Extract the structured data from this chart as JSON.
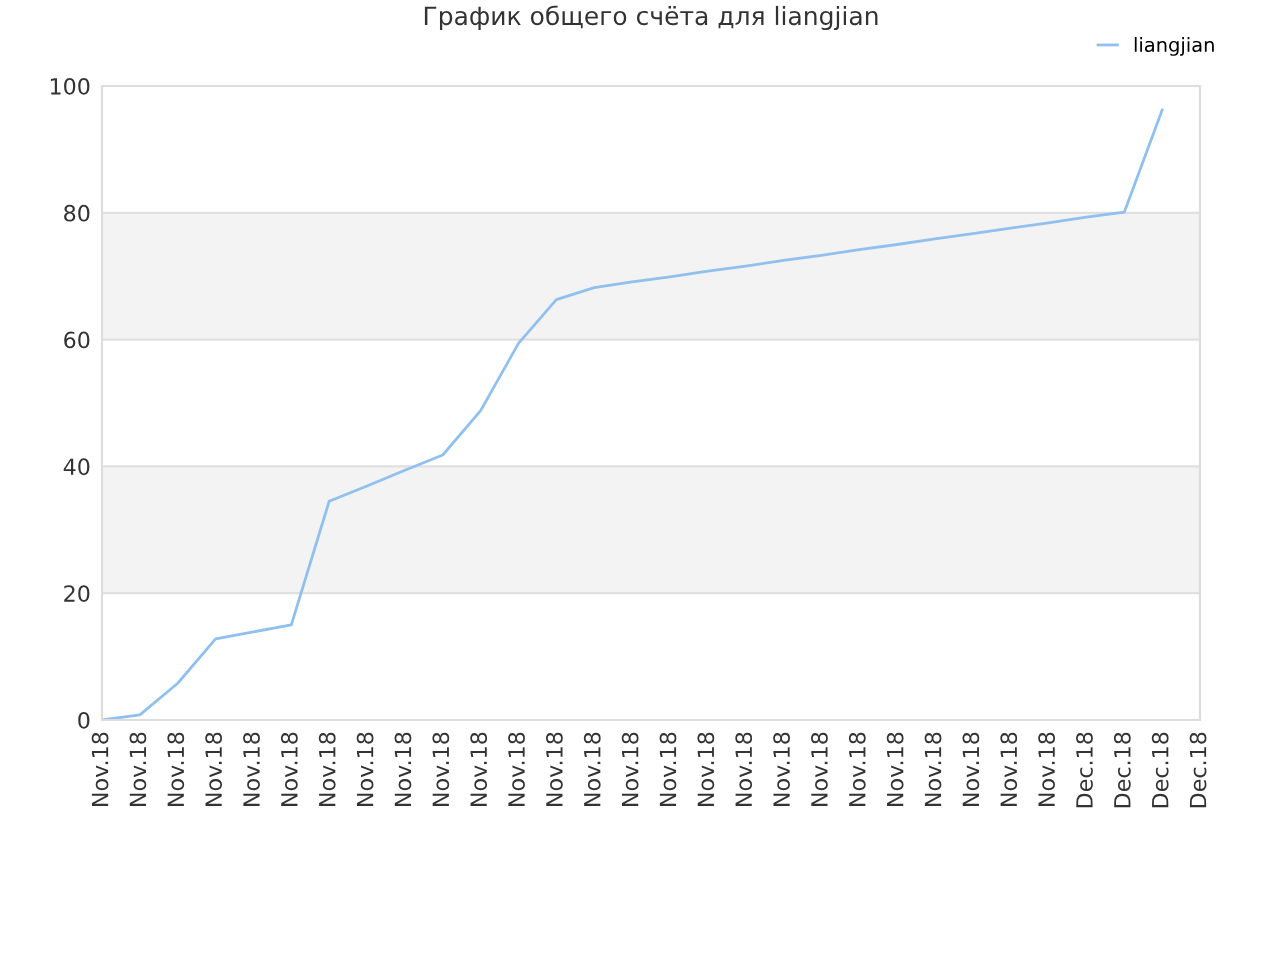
{
  "chart_data": {
    "type": "line",
    "title": "График общего счёта для liangjian",
    "categories": [
      "Nov.18",
      "Nov.18",
      "Nov.18",
      "Nov.18",
      "Nov.18",
      "Nov.18",
      "Nov.18",
      "Nov.18",
      "Nov.18",
      "Nov.18",
      "Nov.18",
      "Nov.18",
      "Nov.18",
      "Nov.18",
      "Nov.18",
      "Nov.18",
      "Nov.18",
      "Nov.18",
      "Nov.18",
      "Nov.18",
      "Nov.18",
      "Nov.18",
      "Nov.18",
      "Nov.18",
      "Nov.18",
      "Nov.18",
      "Dec.18",
      "Dec.18",
      "Dec.18",
      "Dec.18"
    ],
    "series": [
      {
        "name": "liangjian",
        "color": "#90c0f0",
        "values": [
          0,
          0.8,
          5.8,
          12.8,
          13.9,
          15,
          34.5,
          36.9,
          39.4,
          41.8,
          48.8,
          59.4,
          66.3,
          68.2,
          69.1,
          69.9,
          70.8,
          71.6,
          72.5,
          73.3,
          74.2,
          75,
          75.9,
          76.7,
          77.6,
          78.4,
          79.3,
          80.1,
          96.2,
          null
        ]
      }
    ],
    "ylim": [
      0,
      100
    ],
    "yticks": [
      0,
      20,
      40,
      60,
      80,
      100
    ],
    "grid": "y",
    "legend": "top right",
    "marker": "none",
    "line_style": "solid"
  }
}
